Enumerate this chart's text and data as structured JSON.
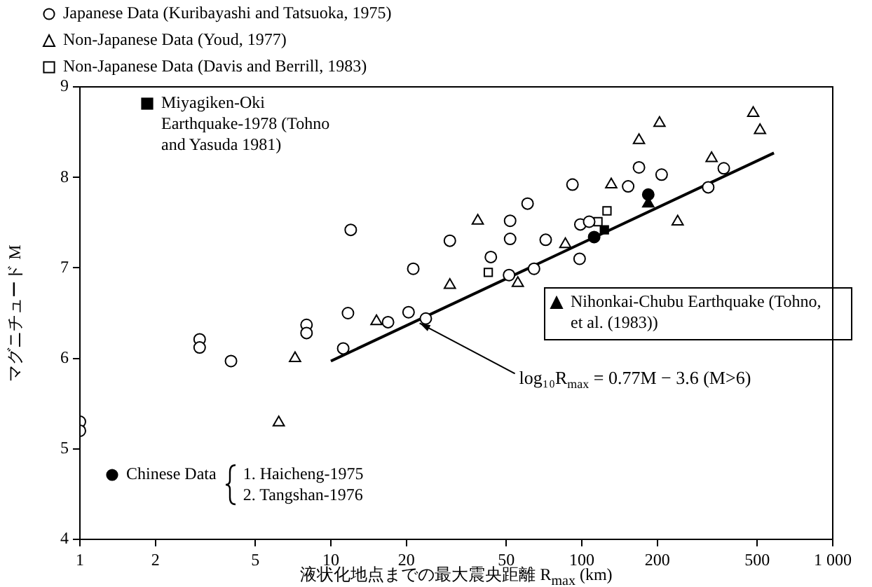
{
  "chart_data": {
    "type": "scatter",
    "xlabel": "液状化地点までの最大震央距離 R$_{max}$ (km)",
    "ylabel": "マグニチュード M",
    "log": "x",
    "xlim": [
      1,
      1000
    ],
    "ylim": [
      4,
      9
    ],
    "xticks": [
      1,
      2,
      5,
      10,
      20,
      50,
      100,
      200,
      500,
      {
        "value": 1000,
        "label": "1 000"
      }
    ],
    "yticks": [
      4,
      5,
      6,
      7,
      8,
      9
    ],
    "grid": false,
    "legend": "top left",
    "series": [
      {
        "name": "Japanese Data (Kuribayashi and Tatsuoka, 1975)",
        "color": "#000000",
        "marker": "circle",
        "x": [
          1,
          1,
          3,
          3,
          4,
          8,
          8,
          11.2,
          11.7,
          12,
          16.9,
          20.4,
          21.3,
          23.9,
          29.8,
          43.4,
          51.8,
          51.8,
          51.3,
          60.8,
          64.5,
          71.8,
          91.8,
          98.7,
          98,
          107,
          153,
          169,
          208,
          319,
          368
        ],
        "values": [
          5.3,
          5.2,
          6.21,
          6.12,
          5.97,
          6.37,
          6.28,
          6.11,
          6.5,
          7.42,
          6.4,
          6.51,
          6.99,
          6.44,
          7.3,
          7.12,
          7.52,
          7.32,
          6.92,
          7.71,
          6.99,
          7.31,
          7.92,
          7.48,
          7.1,
          7.51,
          7.9,
          8.11,
          8.03,
          7.89,
          8.1
        ]
      },
      {
        "name": "Non-Japanese Data (Youd, 1977)",
        "color": "#000000",
        "marker": "triangle",
        "x": [
          6.2,
          7.2,
          15.2,
          29.8,
          38.5,
          55.6,
          86,
          131,
          169,
          204,
          241,
          329,
          482,
          513
        ],
        "values": [
          5.29,
          6.0,
          6.41,
          6.81,
          7.52,
          6.83,
          7.26,
          7.92,
          8.41,
          8.6,
          7.51,
          8.21,
          8.71,
          8.52
        ]
      },
      {
        "name": "Non-Japanese Data (Davis and Berrill, 1983)",
        "color": "#000000",
        "marker": "square",
        "x": [
          42.4,
          116,
          126
        ],
        "values": [
          6.95,
          7.51,
          7.63
        ]
      },
      {
        "name": "Miyagiken-Oki Earthquake-1978 (Tohno and Yasuda 1981)",
        "color": "#000000",
        "marker": "square",
        "x": [
          123
        ],
        "values": [
          7.42
        ]
      },
      {
        "name": "Chinese Data",
        "color": "#000000",
        "marker": "circle",
        "x": [
          112,
          184
        ],
        "values": [
          7.34,
          7.81
        ]
      },
      {
        "name": "Nihonkai-Chubu Earthquake (Tohno, et al. (1983))",
        "color": "#000000",
        "marker": "triangle",
        "x": [
          184
        ],
        "values": [
          7.71
        ]
      },
      {
        "type": "line",
        "color": "#000000",
        "marker": "none",
        "x": [
          10,
          583
        ],
        "values": [
          5.97,
          8.27
        ]
      }
    ],
    "annotations": [
      {
        "text": "log₁₀R$_{max}$ = 0.77M − 3.6 (M>6)",
        "x": 22,
        "y": 6.42
      },
      "1. Haicheng-1975",
      "2. Tangshan-1976"
    ]
  }
}
